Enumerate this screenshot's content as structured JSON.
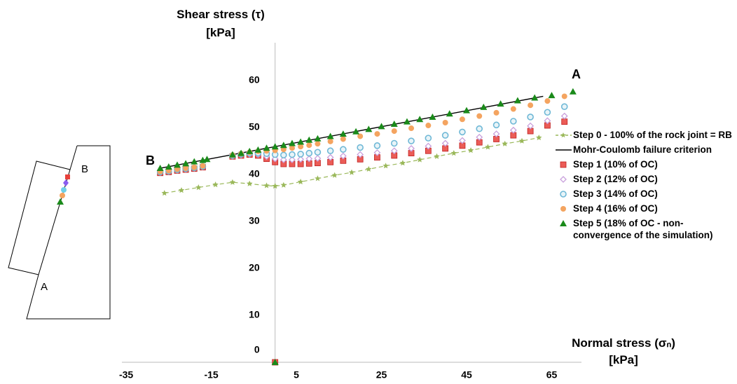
{
  "chart_data": {
    "type": "scatter",
    "y_label": "Shear stress (τ)\n[kPa]",
    "x_label": "Normal stress (σₙ)\n[kPa]",
    "xlim": [
      -36,
      72
    ],
    "ylim": [
      0,
      68
    ],
    "xticks": [
      -35,
      -15,
      5,
      25,
      45,
      65
    ],
    "yticks": [
      0,
      10,
      20,
      30,
      40,
      50,
      60
    ],
    "grid": false,
    "annotations": [
      "A",
      "B"
    ],
    "diagram_labels": [
      "B",
      "A"
    ],
    "series": [
      {
        "name": "Step 0 - 100% of the rock joint = RB",
        "color": "#9ab85a",
        "marker": "star",
        "line": "dashed",
        "x": [
          -26,
          -22,
          -18,
          -14,
          -10,
          -6,
          -2,
          0,
          2,
          6,
          10,
          14,
          18,
          22,
          26,
          30,
          34,
          38,
          42,
          46,
          50,
          54,
          58,
          62
        ],
        "values": [
          36.0,
          36.6,
          37.2,
          37.8,
          38.3,
          38.0,
          37.6,
          37.5,
          37.7,
          38.4,
          39.1,
          39.8,
          40.4,
          41.1,
          41.8,
          42.4,
          43.1,
          43.8,
          44.5,
          45.1,
          45.8,
          46.5,
          47.1,
          47.8
        ]
      },
      {
        "name": "Mohr-Coulomb failure criterion",
        "color": "#000000",
        "marker": "none",
        "line": "solid",
        "x": [
          -27,
          63
        ],
        "values": [
          41.3,
          56.6
        ]
      },
      {
        "name": "Step 1 (10% of OC)",
        "color": "#e8403a",
        "marker": "square",
        "line": "none",
        "x": [
          -27,
          -25,
          -23,
          -21,
          -19,
          -17,
          -10,
          -8,
          -6,
          -4,
          -2,
          0,
          2,
          4,
          6,
          8,
          10,
          13,
          16,
          20,
          24,
          28,
          32,
          36,
          40,
          44,
          48,
          52,
          56,
          60,
          64,
          68,
          0
        ],
        "values": [
          40.3,
          40.5,
          40.8,
          41.0,
          41.2,
          41.5,
          43.8,
          44.0,
          44.2,
          44.0,
          43.3,
          42.6,
          42.2,
          42.2,
          42.2,
          42.3,
          42.4,
          42.6,
          42.9,
          43.2,
          43.6,
          44.0,
          44.5,
          45.0,
          45.5,
          46.1,
          46.8,
          47.5,
          48.3,
          49.2,
          50.4,
          51.2,
          0
        ]
      },
      {
        "name": "Step 2 (12% of OC)",
        "color": "#c9a0dc",
        "marker": "diamond",
        "line": "none",
        "x": [
          -27,
          -25,
          -23,
          -21,
          -19,
          -17,
          -10,
          -8,
          -6,
          -4,
          -2,
          0,
          2,
          4,
          6,
          8,
          10,
          13,
          16,
          20,
          24,
          28,
          32,
          36,
          40,
          44,
          48,
          52,
          56,
          60,
          64,
          68
        ],
        "values": [
          40.4,
          40.6,
          40.9,
          41.1,
          41.3,
          41.6,
          43.9,
          44.1,
          44.3,
          44.2,
          43.8,
          43.3,
          43.1,
          43.1,
          43.2,
          43.3,
          43.4,
          43.6,
          43.9,
          44.2,
          44.6,
          45.0,
          45.5,
          46.0,
          46.6,
          47.2,
          47.9,
          48.6,
          49.4,
          50.3,
          51.4,
          52.4
        ]
      },
      {
        "name": "Step 3 (14% of OC)",
        "color": "#6fb8d6",
        "marker": "circle-open",
        "line": "none",
        "x": [
          -27,
          -25,
          -23,
          -21,
          -19,
          -17,
          -10,
          -8,
          -6,
          -4,
          -2,
          0,
          2,
          4,
          6,
          8,
          10,
          13,
          16,
          20,
          24,
          28,
          32,
          36,
          40,
          44,
          48,
          52,
          56,
          60,
          64,
          68
        ],
        "values": [
          40.5,
          40.7,
          41.0,
          41.2,
          41.4,
          41.7,
          44.0,
          44.3,
          44.5,
          44.5,
          44.4,
          44.2,
          44.1,
          44.2,
          44.3,
          44.5,
          44.7,
          45.0,
          45.3,
          45.7,
          46.1,
          46.6,
          47.1,
          47.7,
          48.3,
          49.0,
          49.7,
          50.5,
          51.3,
          52.2,
          53.2,
          54.4
        ]
      },
      {
        "name": "Step 4 (16% of OC)",
        "color": "#f4a460",
        "marker": "circle",
        "line": "none",
        "x": [
          -27,
          -25,
          -23,
          -21,
          -19,
          -17,
          -10,
          -8,
          -6,
          -4,
          -2,
          0,
          2,
          4,
          6,
          8,
          10,
          13,
          16,
          20,
          24,
          28,
          32,
          36,
          40,
          44,
          48,
          52,
          56,
          60,
          64,
          68
        ],
        "values": [
          40.6,
          40.8,
          41.1,
          41.3,
          41.5,
          41.8,
          44.1,
          44.4,
          44.7,
          44.9,
          45.0,
          45.1,
          45.3,
          45.6,
          45.9,
          46.2,
          46.5,
          47.0,
          47.5,
          48.1,
          48.6,
          49.2,
          49.8,
          50.4,
          51.0,
          51.7,
          52.4,
          53.1,
          53.9,
          54.7,
          55.6,
          56.6
        ]
      },
      {
        "name": "Step 5 (18% of OC - non-convergence of the simulation)",
        "color": "#1a8a1a",
        "marker": "triangle",
        "line": "none",
        "x": [
          -27,
          -25,
          -23,
          -21,
          -19,
          -17,
          -16,
          -10,
          -8,
          -6,
          -4,
          -2,
          0,
          2,
          4,
          6,
          8,
          10,
          13,
          16,
          19,
          22,
          25,
          28,
          31,
          34,
          37,
          41,
          45,
          49,
          53,
          57,
          61,
          65,
          70,
          0
        ],
        "values": [
          41.3,
          41.6,
          42.0,
          42.3,
          42.7,
          43.0,
          43.2,
          44.2,
          44.5,
          44.9,
          45.2,
          45.6,
          45.9,
          46.2,
          46.6,
          46.9,
          47.3,
          47.6,
          48.1,
          48.6,
          49.1,
          49.6,
          50.2,
          50.7,
          51.2,
          51.7,
          52.2,
          52.9,
          53.6,
          54.3,
          55.0,
          55.7,
          56.3,
          56.8,
          57.6,
          0
        ]
      }
    ]
  }
}
